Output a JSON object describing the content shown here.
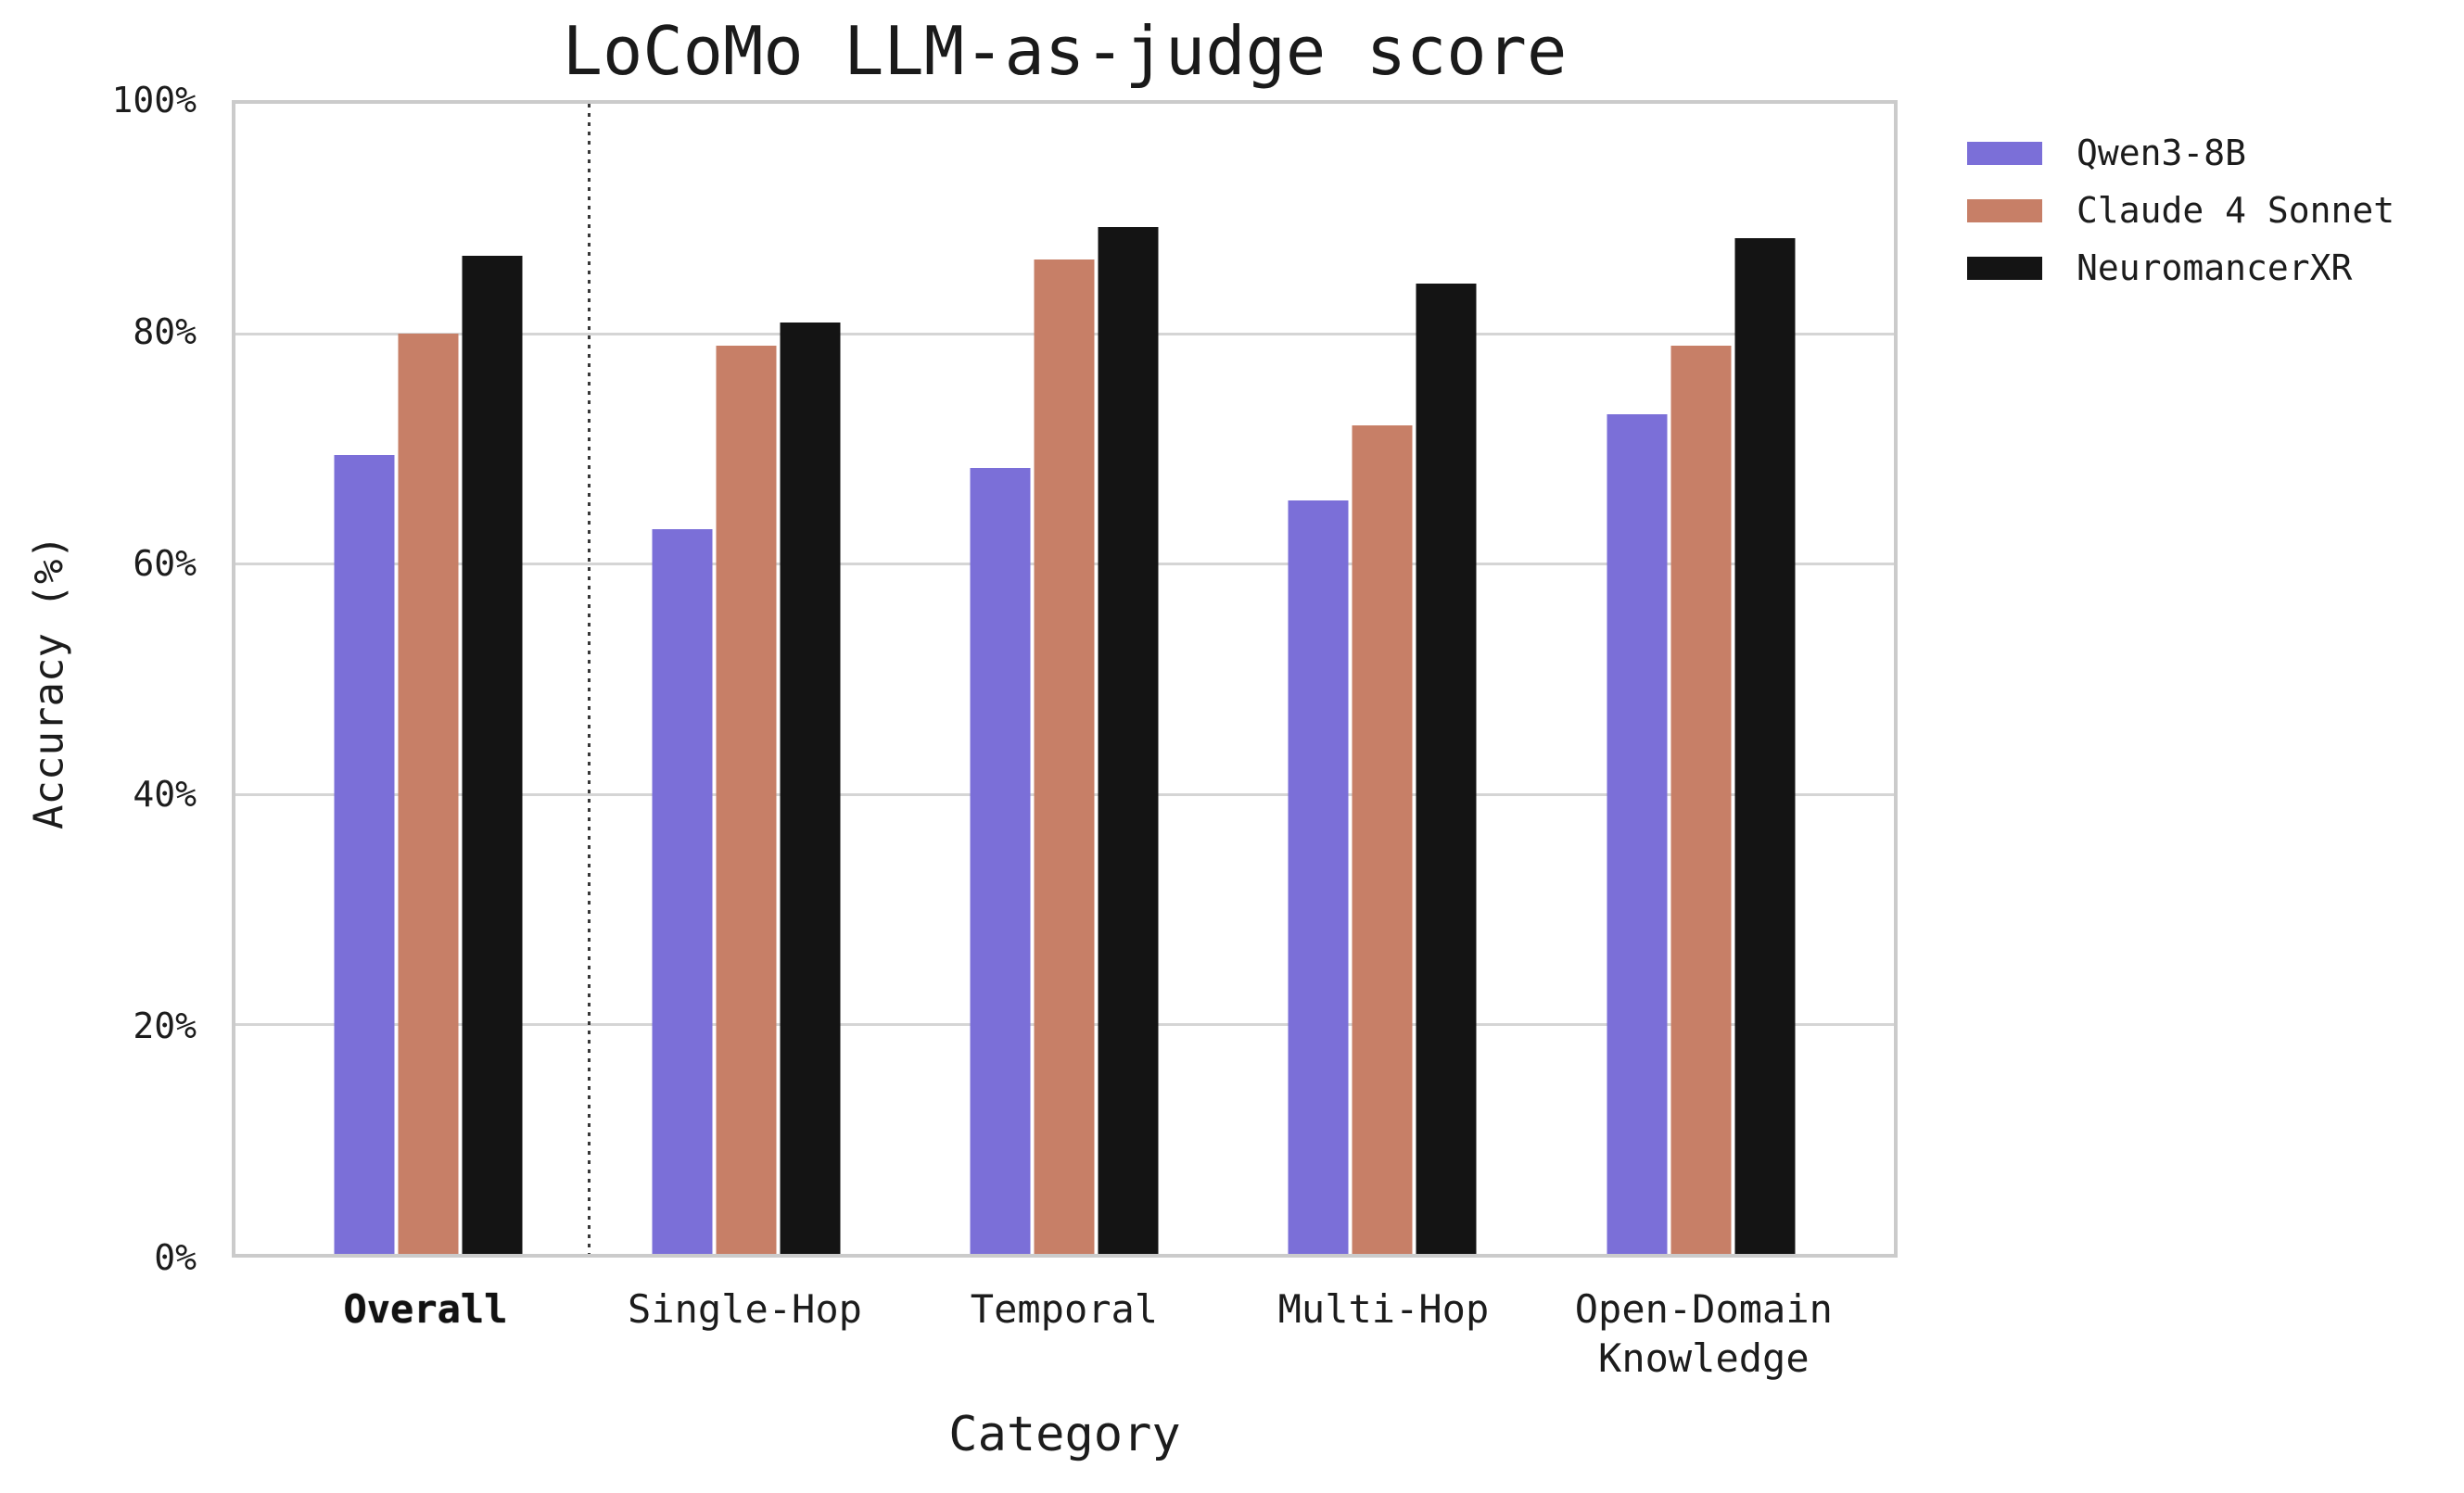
{
  "chart_data": {
    "type": "bar",
    "title": "LoCoMo LLM-as-judge score",
    "xlabel": "Category",
    "ylabel": "Accuracy (%)",
    "categories": [
      {
        "label": "Overall",
        "bold": true
      },
      {
        "label": "Single-Hop",
        "bold": false
      },
      {
        "label": "Temporal",
        "bold": false
      },
      {
        "label": "Multi-Hop",
        "bold": false
      },
      {
        "label": "Open-Domain\nKnowledge",
        "bold": false
      }
    ],
    "series": [
      {
        "name": "Qwen3-8B",
        "color": "#7B6FD8",
        "values": [
          69.5,
          63.0,
          68.3,
          65.5,
          73.0
        ]
      },
      {
        "name": "Claude 4 Sonnet",
        "color": "#C77F67",
        "values": [
          80.0,
          79.0,
          86.5,
          72.0,
          79.0
        ]
      },
      {
        "name": "NeuromancerXR",
        "color": "#141414",
        "values": [
          86.8,
          81.0,
          89.3,
          84.4,
          88.3
        ]
      }
    ],
    "ylim": [
      0,
      100
    ],
    "yticks": [
      {
        "value": 0,
        "label": "0%"
      },
      {
        "value": 20,
        "label": "20%"
      },
      {
        "value": 40,
        "label": "40%"
      },
      {
        "value": 60,
        "label": "60%"
      },
      {
        "value": 80,
        "label": "80%"
      },
      {
        "value": 100,
        "label": "100%"
      }
    ],
    "grid": true,
    "legend_position": "upper right, outside plot",
    "separator": {
      "after_category": "Overall",
      "style": "dotted vertical line"
    }
  },
  "figure": {
    "background_color": "#ffffff",
    "grid_color": "#d5d5d5",
    "border_color": "#cbcbcb",
    "separator_color": "#383838",
    "text_color": "#1c1c1c"
  }
}
